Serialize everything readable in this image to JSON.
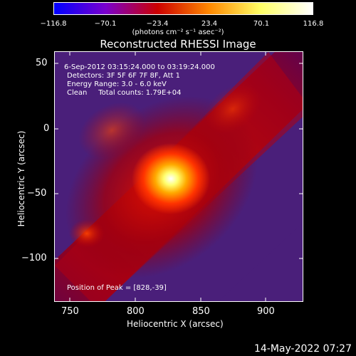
{
  "colorbar": {
    "ticks": [
      "−116.8",
      "−70.1",
      "−23.4",
      "23.4",
      "70.1",
      "116.8"
    ],
    "units": "(photons cm⁻² s⁻¹ asec⁻²)",
    "gradient": [
      "#0000ff",
      "#7a00cc",
      "#cc0000",
      "#ff8800",
      "#ffff66",
      "#ffffff"
    ]
  },
  "title": "Reconstructed RHESSI Image",
  "info": {
    "time_range": "6-Sep-2012 03:15:24.000 to 03:19:24.000",
    "detectors": "Detectors: 3F 5F 6F 7F 8F, Att 1",
    "energy": "Energy Range: 3.0 - 6.0 keV",
    "clean": "Clean     Total counts: 1.79E+04",
    "peak": "Position of Peak = [828,-39]"
  },
  "axes": {
    "xlabel": "Heliocentric X (arcsec)",
    "ylabel": "Heliocentric Y (arcsec)",
    "xticks": [
      "750",
      "800",
      "850",
      "900"
    ],
    "yticks": [
      "50",
      "0",
      "−50",
      "−100"
    ]
  },
  "timestamp": "14-May-2022 07:27"
}
